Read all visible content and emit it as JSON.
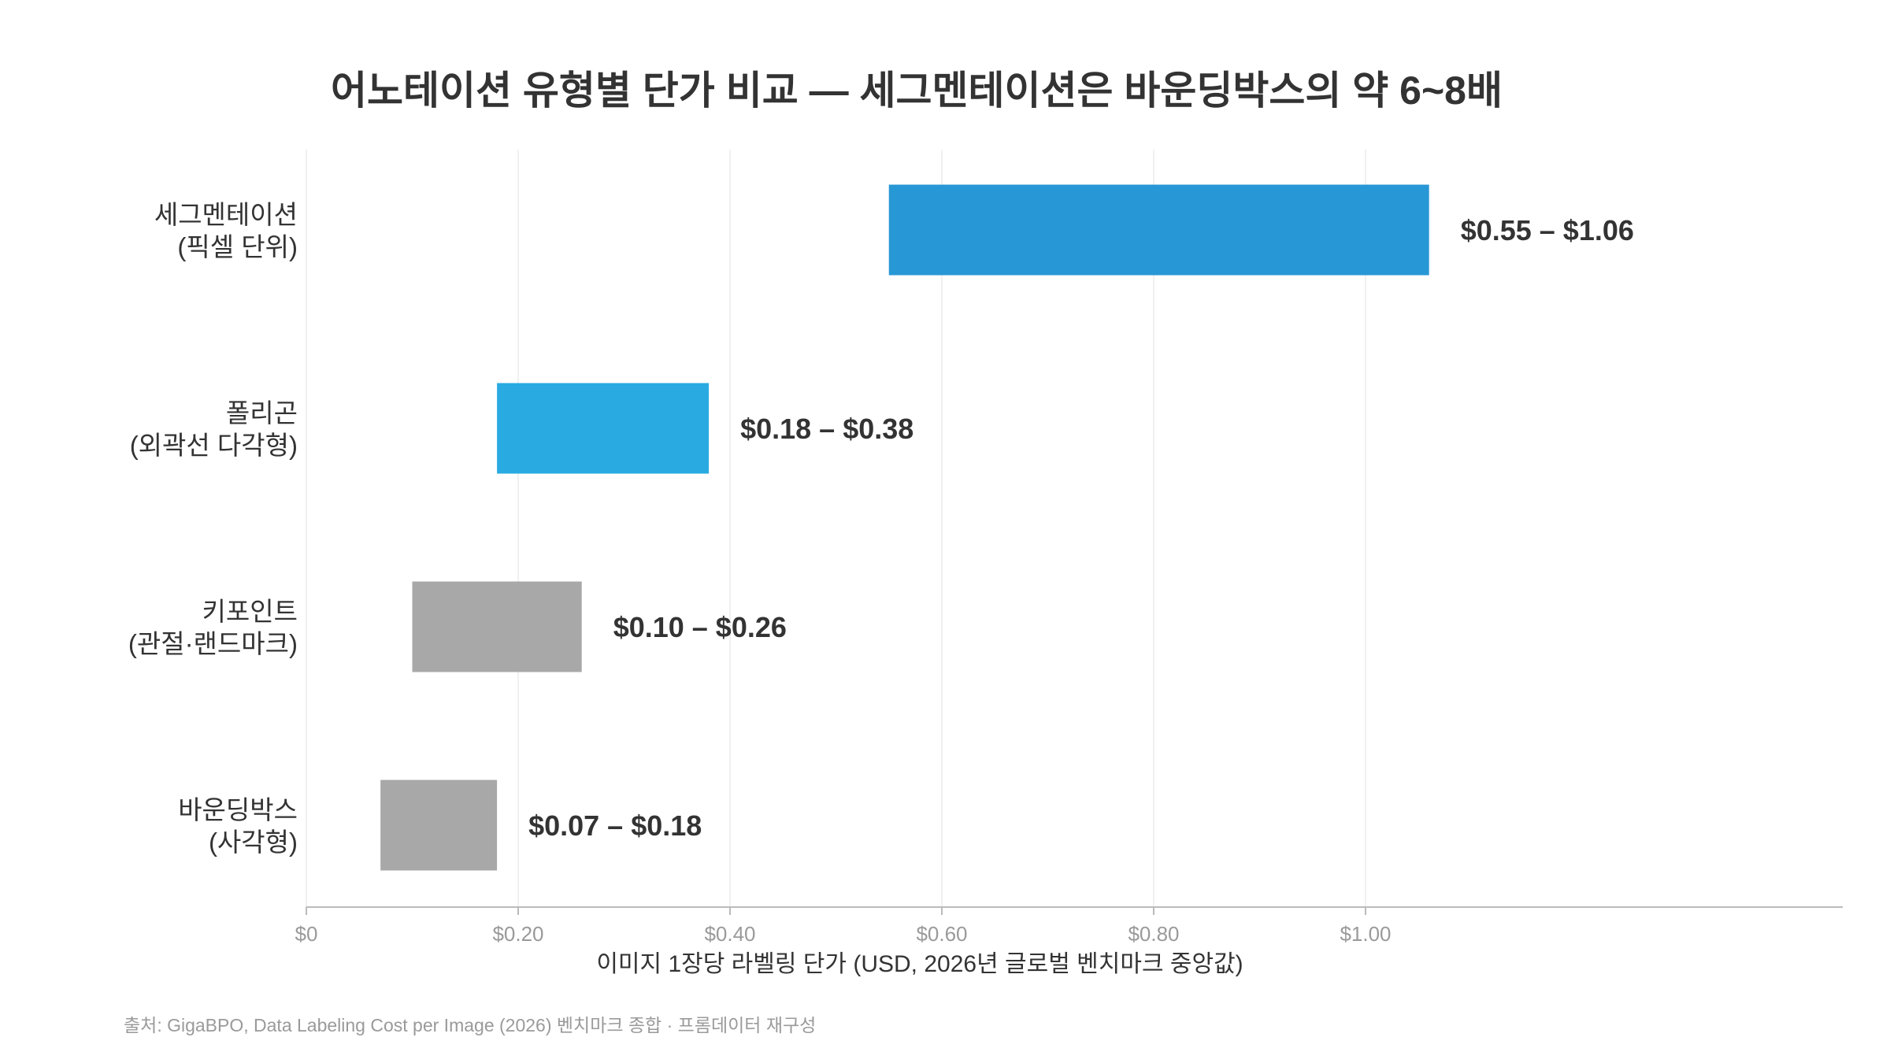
{
  "chart_data": {
    "type": "bar",
    "orientation": "horizontal",
    "chart_style": "floating range bars",
    "title": "어노테이션 유형별 단가 비교 — 세그멘테이션은 바운딩박스의 약 6~8배",
    "xlabel": "이미지 1장당 라벨링 단가 (USD, 2026년 글로벌 벤치마크 중앙값)",
    "ylabel": "",
    "xlim": [
      0,
      1.45
    ],
    "xticks": [
      {
        "value": 0,
        "label": "$0"
      },
      {
        "value": 0.2,
        "label": "$0.20"
      },
      {
        "value": 0.4,
        "label": "$0.40"
      },
      {
        "value": 0.6,
        "label": "$0.60"
      },
      {
        "value": 0.8,
        "label": "$0.80"
      },
      {
        "value": 1.0,
        "label": "$1.00"
      }
    ],
    "grid": "vertical",
    "legend": "none",
    "categories": [
      {
        "line1": "세그멘테이션",
        "line2": "(픽셀 단위)",
        "low": 0.55,
        "high": 1.06,
        "label": "$0.55 – $1.06",
        "color": "#2897d5"
      },
      {
        "line1": "폴리곤",
        "line2": "(외곽선 다각형)",
        "low": 0.18,
        "high": 0.38,
        "label": "$0.18 – $0.38",
        "color": "#29abe2"
      },
      {
        "line1": "키포인트",
        "line2": "(관절·랜드마크)",
        "low": 0.1,
        "high": 0.26,
        "label": "$0.10 – $0.26",
        "color": "#a9a8a8"
      },
      {
        "line1": "바운딩박스",
        "line2": "(사각형)",
        "low": 0.07,
        "high": 0.18,
        "label": "$0.07 – $0.18",
        "color": "#a9a8a8"
      }
    ],
    "source": "출처: GigaBPO, Data Labeling Cost per Image (2026) 벤치마크 종합 · 프롬데이터 재구성"
  },
  "colors": {
    "grid": "#ececec",
    "axis": "#bbbbbb",
    "text": "#333333",
    "muted": "#9a9a9a"
  }
}
